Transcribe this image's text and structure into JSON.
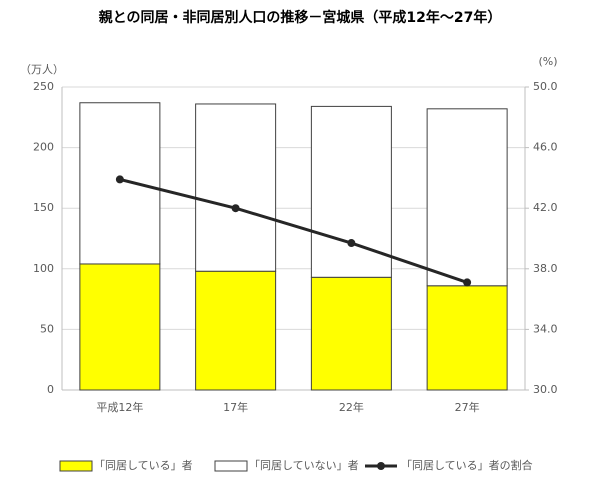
{
  "chart_data": {
    "type": "bar",
    "stacked": true,
    "title": "親との同居・非同居別人口の推移－宮城県（平成12年～27年）",
    "y_label": "（万人）",
    "y2_label": "(%)",
    "categories": [
      "平成12年",
      "17年",
      "22年",
      "27年"
    ],
    "series": [
      {
        "name": "「同居している」者",
        "color": "#ffff00",
        "values": [
          104,
          98,
          93,
          86
        ]
      },
      {
        "name": "「同居していない」者",
        "color": "#ffffff",
        "values": [
          133,
          138,
          141,
          146
        ]
      },
      {
        "name": "「同居している」者の割合",
        "color": "#262626",
        "type": "line",
        "axis": "y2",
        "values": [
          43.9,
          42.0,
          39.7,
          37.1
        ]
      }
    ],
    "ylim": [
      0,
      250
    ],
    "yticks": [
      0,
      50,
      100,
      150,
      200,
      250
    ],
    "y2lim": [
      30,
      50
    ],
    "y2ticks": [
      {
        "value": 30,
        "label": "30.0"
      },
      {
        "value": 34,
        "label": "34.0"
      },
      {
        "value": 38,
        "label": "38.0"
      },
      {
        "value": 42,
        "label": "42.0"
      },
      {
        "value": 46,
        "label": "46.0"
      },
      {
        "value": 50,
        "label": "50.0"
      }
    ],
    "grid": true
  }
}
